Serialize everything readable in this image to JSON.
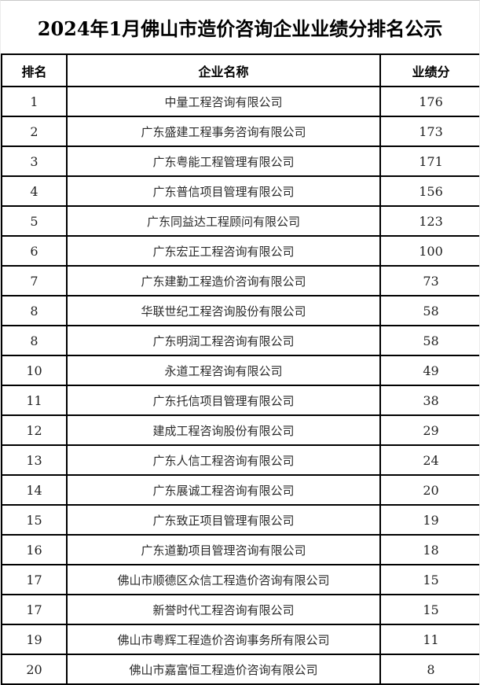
{
  "page": {
    "title": "2024年1月佛山市造价咨询企业业绩分排名公示"
  },
  "table": {
    "headers": [
      "排名",
      "企业名称",
      "业绩分"
    ],
    "rows": [
      {
        "rank": "1",
        "name": "中量工程咨询有限公司",
        "score": "176"
      },
      {
        "rank": "2",
        "name": "广东盛建工程事务咨询有限公司",
        "score": "173"
      },
      {
        "rank": "3",
        "name": "广东粤能工程管理有限公司",
        "score": "171"
      },
      {
        "rank": "4",
        "name": "广东普信项目管理有限公司",
        "score": "156"
      },
      {
        "rank": "5",
        "name": "广东同益达工程顾问有限公司",
        "score": "123"
      },
      {
        "rank": "6",
        "name": "广东宏正工程咨询有限公司",
        "score": "100"
      },
      {
        "rank": "7",
        "name": "广东建勤工程造价咨询有限公司",
        "score": "73"
      },
      {
        "rank": "8",
        "name": "华联世纪工程咨询股份有限公司",
        "score": "58"
      },
      {
        "rank": "8",
        "name": "广东明润工程咨询有限公司",
        "score": "58"
      },
      {
        "rank": "10",
        "name": "永道工程咨询有限公司",
        "score": "49"
      },
      {
        "rank": "11",
        "name": "广东托信项目管理有限公司",
        "score": "38"
      },
      {
        "rank": "12",
        "name": "建成工程咨询股份有限公司",
        "score": "29"
      },
      {
        "rank": "13",
        "name": "广东人信工程咨询有限公司",
        "score": "24"
      },
      {
        "rank": "14",
        "name": "广东展诚工程咨询有限公司",
        "score": "20"
      },
      {
        "rank": "15",
        "name": "广东致正项目管理有限公司",
        "score": "19"
      },
      {
        "rank": "16",
        "name": "广东道勤项目管理咨询有限公司",
        "score": "18"
      },
      {
        "rank": "17",
        "name": "佛山市顺德区众信工程造价咨询有限公司",
        "score": "15"
      },
      {
        "rank": "17",
        "name": "新誉时代工程咨询有限公司",
        "score": "15"
      },
      {
        "rank": "19",
        "name": "佛山市粤辉工程造价咨询事务所有限公司",
        "score": "11"
      },
      {
        "rank": "20",
        "name": "佛山市嘉富恒工程造价咨询有限公司",
        "score": "8"
      }
    ]
  },
  "colors": {
    "background": "#ffffff",
    "table_border": "#000000",
    "title_text": "#000000",
    "body_text": "#2b2b2b",
    "top_edge_line": "#c9c9c9"
  }
}
